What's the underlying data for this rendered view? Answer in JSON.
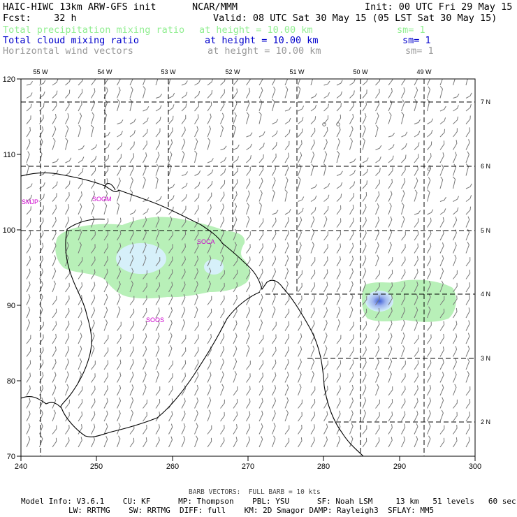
{
  "header": {
    "model_title": "HAIC-HIWC 13km ARW-GFS init",
    "org": "NCAR/MMM",
    "init": "Init: 00 UTC Fri 29 May 15",
    "fcst": "Fcst:    32 h",
    "valid": "Valid: 08 UTC Sat 30 May 15 (05 LST Sat 30 May 15)",
    "fields": [
      {
        "name": "Total precipitation mixing ratio",
        "height": "at height = 10.00 km",
        "sm": "sm= 1",
        "color": "#90ee90"
      },
      {
        "name": "Total cloud mixing ratio",
        "height": "at height = 10.00 km",
        "sm": "sm= 1",
        "color": "#0000cc"
      },
      {
        "name": "Horizontal wind vectors",
        "height": "at height = 10.00 km",
        "sm": "sm= 1",
        "color": "#999999"
      }
    ]
  },
  "map": {
    "grid_x_labels": [
      "240",
      "250",
      "260",
      "270",
      "280",
      "290",
      "300"
    ],
    "grid_y_labels": [
      "120",
      "110",
      "100",
      "90",
      "80",
      "70"
    ],
    "lon_labels": [
      "55 W",
      "54 W",
      "53 W",
      "52 W",
      "51 W",
      "50 W",
      "49 W"
    ],
    "lat_labels": [
      "7 N",
      "6 N",
      "5 N",
      "4 N",
      "3 N",
      "2 N"
    ],
    "station_labels": [
      "SMJP",
      "SOGM",
      "SOCA",
      "SOOS"
    ],
    "colors": {
      "precip": "#b8f0b8",
      "cloud_light": "#d6f0fa",
      "cloud_core": "#4a6fd8",
      "barb": "#777777",
      "coast": "#000000",
      "station": "#cc00cc"
    }
  },
  "footer": {
    "barb_note": "BARB VECTORS:  FULL BARB = 10 kts",
    "line1": "Model Info: V3.6.1    CU: KF      MP: Thompson    PBL: YSU      SF: Noah LSM     13 km   51 levels   60 sec",
    "line2": "LW: RRTMG    SW: RRTMG  DIFF: full    KM: 2D Smagor DAMP: Rayleigh3  SFLAY: MM5"
  }
}
